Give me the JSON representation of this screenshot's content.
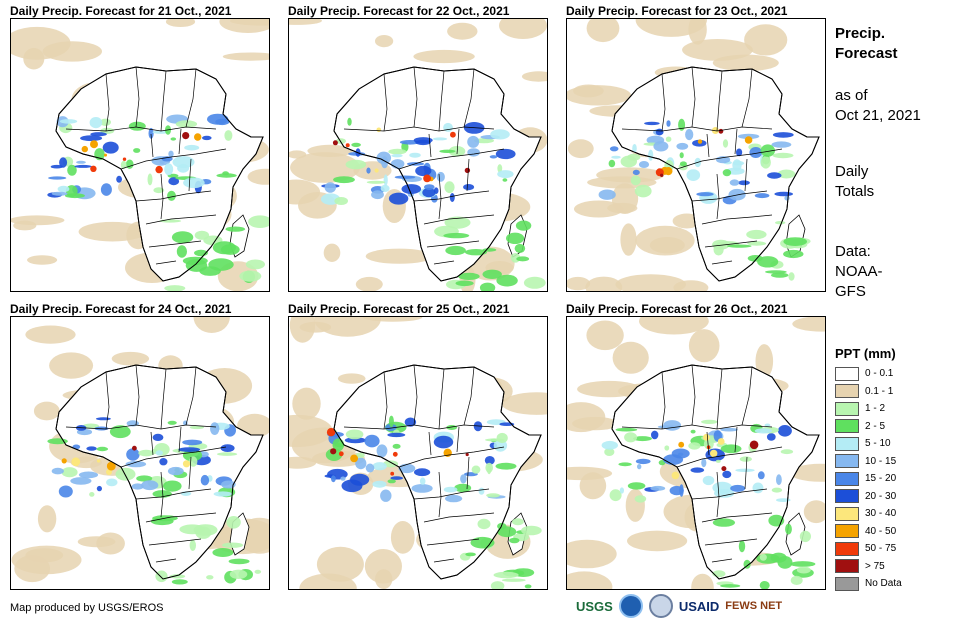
{
  "panels": [
    {
      "title": "Daily Precip. Forecast for 21 Oct., 2021"
    },
    {
      "title": "Daily Precip. Forecast for 22 Oct., 2021"
    },
    {
      "title": "Daily Precip. Forecast for 23 Oct., 2021"
    },
    {
      "title": "Daily Precip. Forecast for 24 Oct., 2021"
    },
    {
      "title": "Daily Precip. Forecast for 25 Oct., 2021"
    },
    {
      "title": "Daily Precip. Forecast for 26 Oct., 2021"
    }
  ],
  "sidebar": {
    "title_line1": "Precip.",
    "title_line2": "Forecast",
    "asof_line1": "as of",
    "asof_line2": "Oct 21, 2021",
    "totals_line1": "Daily",
    "totals_line2": "Totals",
    "data_line1": "Data:",
    "data_line2": "NOAA-",
    "data_line3": "GFS"
  },
  "legend": {
    "title": "PPT (mm)",
    "items": [
      {
        "label": "0 - 0.1",
        "color": "#ffffff"
      },
      {
        "label": "0.1 - 1",
        "color": "#e6d3b0"
      },
      {
        "label": "1 - 2",
        "color": "#b8f5b0"
      },
      {
        "label": "2 - 5",
        "color": "#5fe05f"
      },
      {
        "label": "5 - 10",
        "color": "#b4ecf5"
      },
      {
        "label": "10 - 15",
        "color": "#86b8f0"
      },
      {
        "label": "15 - 20",
        "color": "#4a86e8"
      },
      {
        "label": "20 - 30",
        "color": "#1c4fd8"
      },
      {
        "label": "30 - 40",
        "color": "#fce77c"
      },
      {
        "label": "40 - 50",
        "color": "#f5a300"
      },
      {
        "label": "50 - 75",
        "color": "#f03a0a"
      },
      {
        "label": "> 75",
        "color": "#a01010"
      },
      {
        "label": "No Data",
        "color": "#999999"
      }
    ]
  },
  "footer": {
    "credit": "Map produced by USGS/EROS"
  },
  "logos": {
    "usgs": "USGS",
    "noaa": "NOAA",
    "usaid": "USAID",
    "fews": "FEWS NET"
  }
}
